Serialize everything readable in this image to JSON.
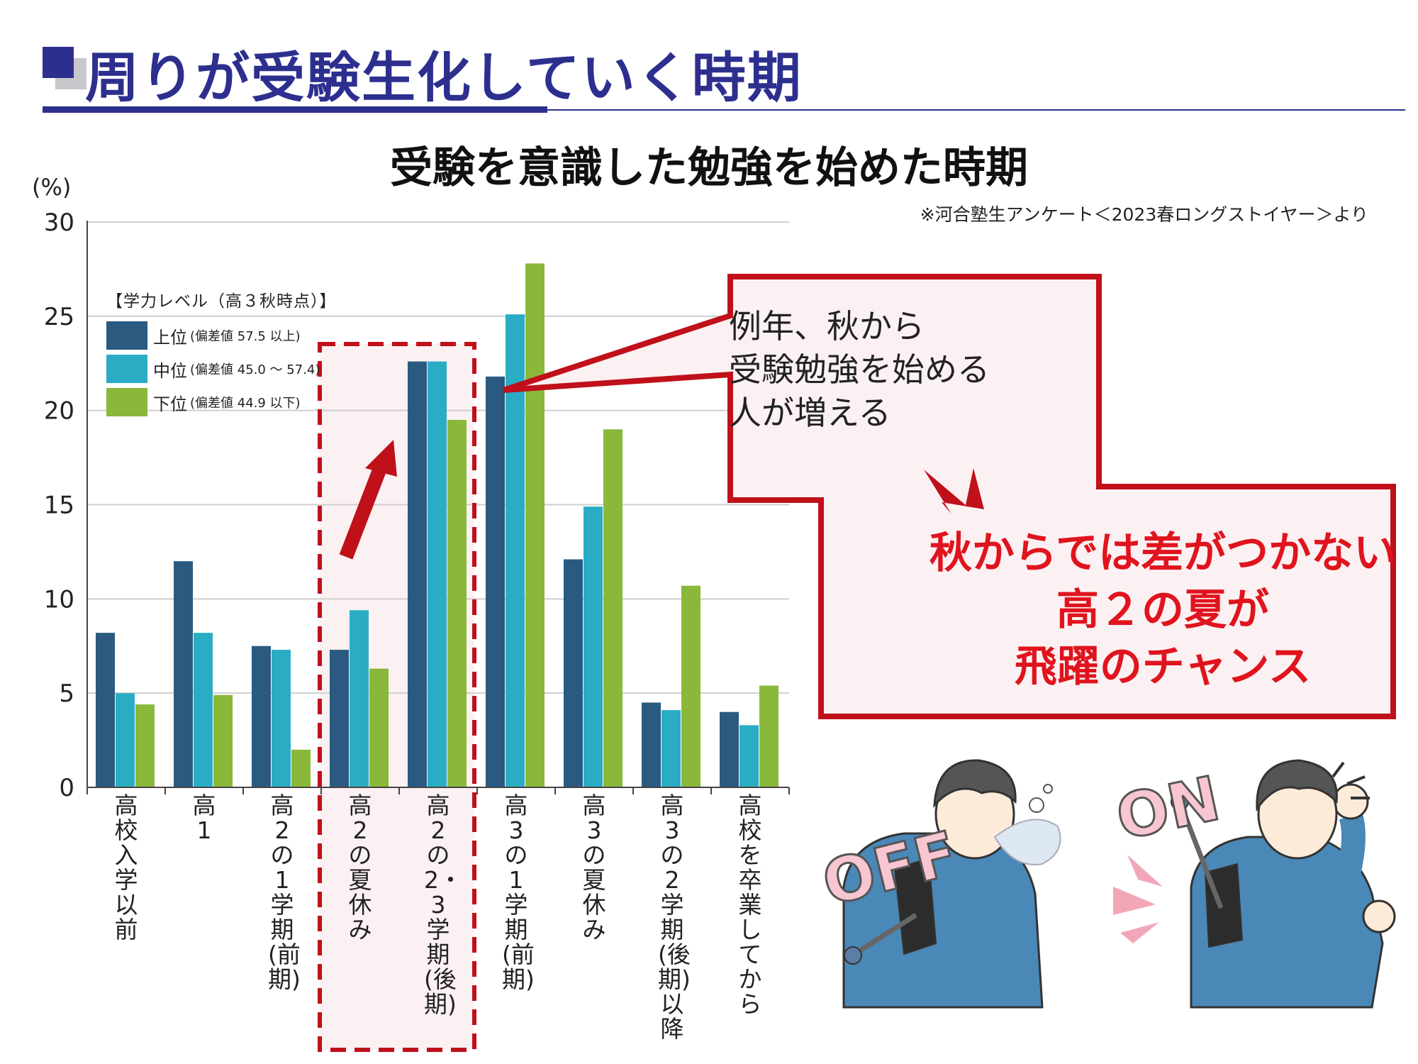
{
  "header": {
    "title": "周りが受験生化していく時期"
  },
  "chart_data": {
    "type": "bar",
    "title": "受験を意識した勉強を始めた時期",
    "source_note": "※河合塾生アンケート＜2023春ロングストイヤー＞より",
    "ylabel": "(%)",
    "ylim": [
      0,
      30
    ],
    "yticks": [
      0,
      5,
      10,
      15,
      20,
      25,
      30
    ],
    "grid": true,
    "legend_title": "【学力レベル（高３秋時点）】",
    "legend_position": "top-left",
    "categories": [
      "高校入学以前",
      "高1",
      "高2の1学期(前期)",
      "高2の夏休み",
      "高2の2・3学期(後期)",
      "高3の1学期(前期)",
      "高3の夏休み",
      "高3の2学期(後期)以降",
      "高校を卒業してから"
    ],
    "series": [
      {
        "name": "上位",
        "detail": "(偏差値 57.5 以上)",
        "color": "#2a5a80",
        "values": [
          8.2,
          12.0,
          7.5,
          7.3,
          22.6,
          21.8,
          12.1,
          4.5,
          4.0
        ]
      },
      {
        "name": "中位",
        "detail": "(偏差値 45.0 ～ 57.4)",
        "color": "#2aadc4",
        "values": [
          5.0,
          8.2,
          7.3,
          9.4,
          22.6,
          25.1,
          14.9,
          4.1,
          3.3
        ]
      },
      {
        "name": "下位",
        "detail": "(偏差値 44.9 以下)",
        "color": "#8ab83a",
        "values": [
          4.4,
          4.9,
          2.0,
          6.3,
          19.5,
          27.8,
          19.0,
          10.7,
          5.4
        ]
      }
    ]
  },
  "callout": {
    "lines": [
      "例年、秋から",
      "受験勉強を始める",
      "人が増える"
    ],
    "emphasis": [
      "秋からでは差がつかない",
      "高２の夏が",
      "飛躍のチャンス"
    ]
  },
  "illustration": {
    "off_label": "OFF",
    "on_label": "ON"
  },
  "colors": {
    "title_navy": "#2d2f8f",
    "callout_red": "#c0101a",
    "emphasis_red": "#e0141e",
    "callout_fill": "#fcf1f2"
  }
}
